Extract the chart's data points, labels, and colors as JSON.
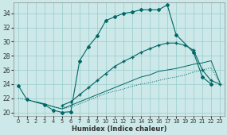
{
  "xlabel": "Humidex (Indice chaleur)",
  "bg_color": "#cce8e8",
  "grid_color": "#99cccc",
  "line_color": "#006666",
  "xlim": [
    -0.5,
    23.5
  ],
  "ylim": [
    19.5,
    35.5
  ],
  "xticks": [
    0,
    1,
    2,
    3,
    4,
    5,
    6,
    7,
    8,
    9,
    10,
    11,
    12,
    13,
    14,
    15,
    16,
    17,
    18,
    19,
    20,
    21,
    22,
    23
  ],
  "yticks": [
    20,
    22,
    24,
    26,
    28,
    30,
    32,
    34
  ],
  "line1_x": [
    0,
    1,
    3,
    4,
    5,
    6,
    7,
    8,
    9,
    10,
    11,
    12,
    13,
    14,
    15,
    16,
    17,
    18,
    20,
    21,
    22
  ],
  "line1_y": [
    23.8,
    21.8,
    21.1,
    20.3,
    20.0,
    20.1,
    27.3,
    29.3,
    30.8,
    33.0,
    33.5,
    34.0,
    34.2,
    34.5,
    34.5,
    34.5,
    35.2,
    31.0,
    28.5,
    25.0,
    24.0
  ],
  "line2_x": [
    5,
    6,
    7,
    8,
    9,
    10,
    11,
    12,
    13,
    14,
    15,
    16,
    17,
    18,
    19,
    20,
    21,
    22,
    23
  ],
  "line2_y": [
    21.0,
    21.5,
    22.5,
    23.5,
    24.5,
    25.5,
    26.5,
    27.2,
    27.8,
    28.5,
    29.0,
    29.5,
    29.8,
    29.8,
    29.5,
    28.8,
    26.0,
    24.5,
    24.0
  ],
  "line3_x": [
    0,
    1,
    2,
    3,
    4,
    5,
    6,
    7,
    8,
    9,
    10,
    11,
    12,
    13,
    14,
    15,
    16,
    17,
    18,
    19,
    20,
    21,
    22,
    23
  ],
  "line3_y": [
    22.0,
    21.8,
    21.5,
    21.2,
    20.8,
    20.5,
    20.8,
    21.2,
    21.7,
    22.2,
    22.7,
    23.0,
    23.3,
    23.7,
    24.0,
    24.2,
    24.5,
    24.8,
    25.0,
    25.3,
    25.7,
    26.0,
    26.3,
    24.2
  ],
  "line4_x": [
    2,
    3,
    4,
    5,
    6,
    7,
    8,
    9,
    10,
    11,
    12,
    13,
    14,
    15,
    16,
    17,
    18,
    19,
    20,
    21,
    22,
    23
  ],
  "line4_y": [
    21.5,
    21.2,
    20.8,
    20.5,
    21.0,
    21.5,
    22.0,
    22.5,
    23.0,
    23.5,
    24.0,
    24.5,
    25.0,
    25.3,
    25.8,
    26.0,
    26.2,
    26.5,
    26.8,
    27.0,
    27.3,
    24.2
  ]
}
